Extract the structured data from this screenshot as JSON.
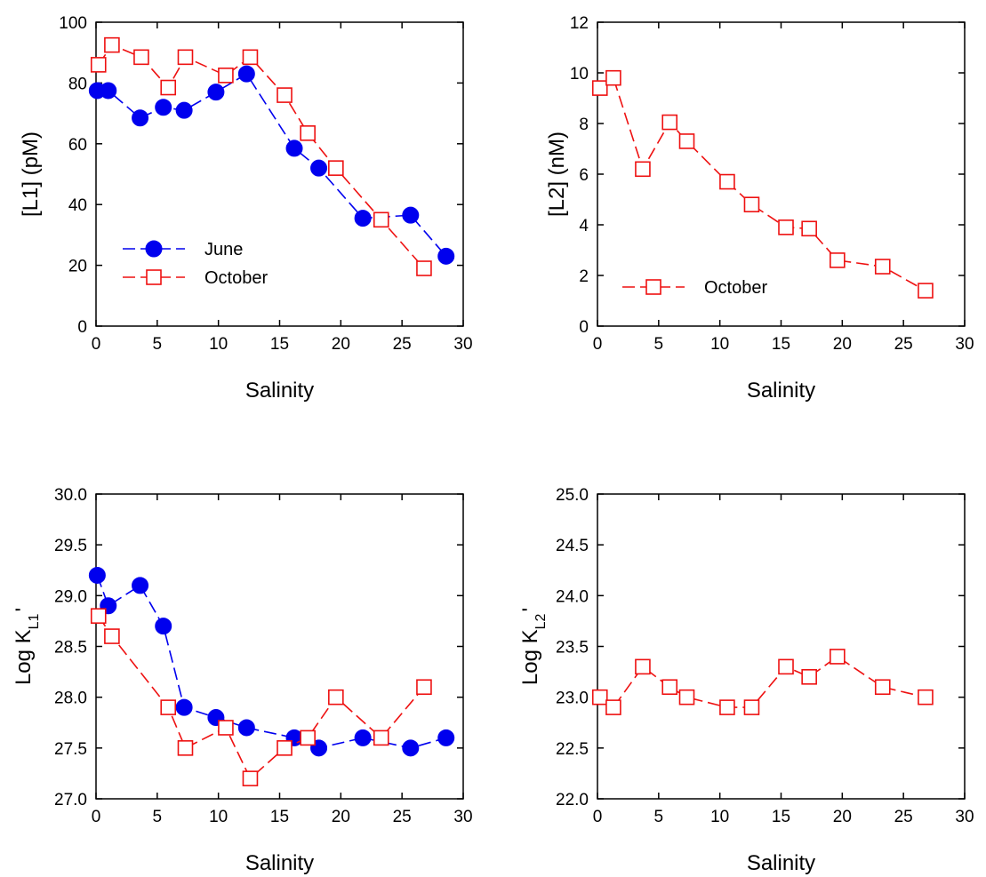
{
  "chart_data": [
    {
      "id": "L1",
      "type": "line",
      "xlabel": "Salinity",
      "ylabel": "[L1] (pM)",
      "xlim": [
        0,
        30
      ],
      "ylim": [
        0,
        100
      ],
      "xticks": [
        0,
        5,
        10,
        15,
        20,
        25,
        30
      ],
      "yticks": [
        0,
        20,
        40,
        60,
        80,
        100
      ],
      "ytick_decimals": 0,
      "legend": "lower-left",
      "series": [
        {
          "name": "June",
          "marker": "filled-circle",
          "color": "#0000ee",
          "x": [
            0.1,
            1.0,
            3.6,
            5.5,
            7.2,
            9.8,
            12.3,
            16.2,
            18.2,
            21.8,
            25.7,
            28.6
          ],
          "y": [
            77.5,
            77.5,
            68.5,
            72,
            71,
            77,
            83,
            58.5,
            52,
            35.5,
            36.5,
            23
          ]
        },
        {
          "name": "October",
          "marker": "open-square",
          "color": "#ee1111",
          "x": [
            0.2,
            1.3,
            3.7,
            5.9,
            7.3,
            10.6,
            12.6,
            15.4,
            17.3,
            19.6,
            23.3,
            26.8
          ],
          "y": [
            86,
            92.5,
            88.5,
            78.5,
            88.5,
            82.5,
            88.5,
            76,
            63.5,
            52,
            35,
            19
          ]
        }
      ]
    },
    {
      "id": "L2",
      "type": "line",
      "xlabel": "Salinity",
      "ylabel": "[L2] (nM)",
      "xlim": [
        0,
        30
      ],
      "ylim": [
        0,
        12
      ],
      "xticks": [
        0,
        5,
        10,
        15,
        20,
        25,
        30
      ],
      "yticks": [
        0,
        2,
        4,
        6,
        8,
        10,
        12
      ],
      "ytick_decimals": 0,
      "legend": "lower-left",
      "series": [
        {
          "name": "October",
          "marker": "open-square",
          "color": "#ee1111",
          "x": [
            0.2,
            1.3,
            3.7,
            5.9,
            7.3,
            10.6,
            12.6,
            15.4,
            17.3,
            19.6,
            23.3,
            26.8
          ],
          "y": [
            9.4,
            9.8,
            6.2,
            8.05,
            7.3,
            5.7,
            4.8,
            3.9,
            3.85,
            2.6,
            2.35,
            1.4
          ]
        }
      ]
    },
    {
      "id": "KL1",
      "type": "line",
      "xlabel": "Salinity",
      "ylabel": "Log K",
      "ylabel_sub": "L1",
      "ylabel_suffix": "'",
      "xlim": [
        0,
        30
      ],
      "ylim": [
        27.0,
        30.0
      ],
      "xticks": [
        0,
        5,
        10,
        15,
        20,
        25,
        30
      ],
      "yticks": [
        27.0,
        27.5,
        28.0,
        28.5,
        29.0,
        29.5,
        30.0
      ],
      "ytick_decimals": 1,
      "series": [
        {
          "marker": "filled-circle",
          "color": "#0000ee",
          "x": [
            0.1,
            1.0,
            3.6,
            5.5,
            7.2,
            9.8,
            12.3,
            16.2,
            18.2,
            21.8,
            25.7,
            28.6
          ],
          "y": [
            29.2,
            28.9,
            29.1,
            28.7,
            27.9,
            27.8,
            27.7,
            27.6,
            27.5,
            27.6,
            27.5,
            27.6
          ]
        },
        {
          "marker": "open-square",
          "color": "#ee1111",
          "x": [
            0.2,
            1.3,
            5.9,
            7.3,
            10.6,
            12.6,
            15.4,
            17.3,
            19.6,
            23.3,
            26.8
          ],
          "y": [
            28.8,
            28.6,
            27.9,
            27.5,
            27.7,
            27.2,
            27.5,
            27.6,
            28.0,
            27.6,
            28.1
          ]
        }
      ]
    },
    {
      "id": "KL2",
      "type": "line",
      "xlabel": "Salinity",
      "ylabel": "Log K",
      "ylabel_sub": "L2",
      "ylabel_suffix": "'",
      "xlim": [
        0,
        30
      ],
      "ylim": [
        22.0,
        25.0
      ],
      "xticks": [
        0,
        5,
        10,
        15,
        20,
        25,
        30
      ],
      "yticks": [
        22.0,
        22.5,
        23.0,
        23.5,
        24.0,
        24.5,
        25.0
      ],
      "ytick_decimals": 1,
      "series": [
        {
          "marker": "open-square",
          "color": "#ee1111",
          "x": [
            0.2,
            1.3,
            3.7,
            5.9,
            7.3,
            10.6,
            12.6,
            15.4,
            17.3,
            19.6,
            23.3,
            26.8
          ],
          "y": [
            23.0,
            22.9,
            23.3,
            23.1,
            23.0,
            22.9,
            22.9,
            23.3,
            23.2,
            23.4,
            23.1,
            23.0
          ]
        }
      ]
    }
  ]
}
